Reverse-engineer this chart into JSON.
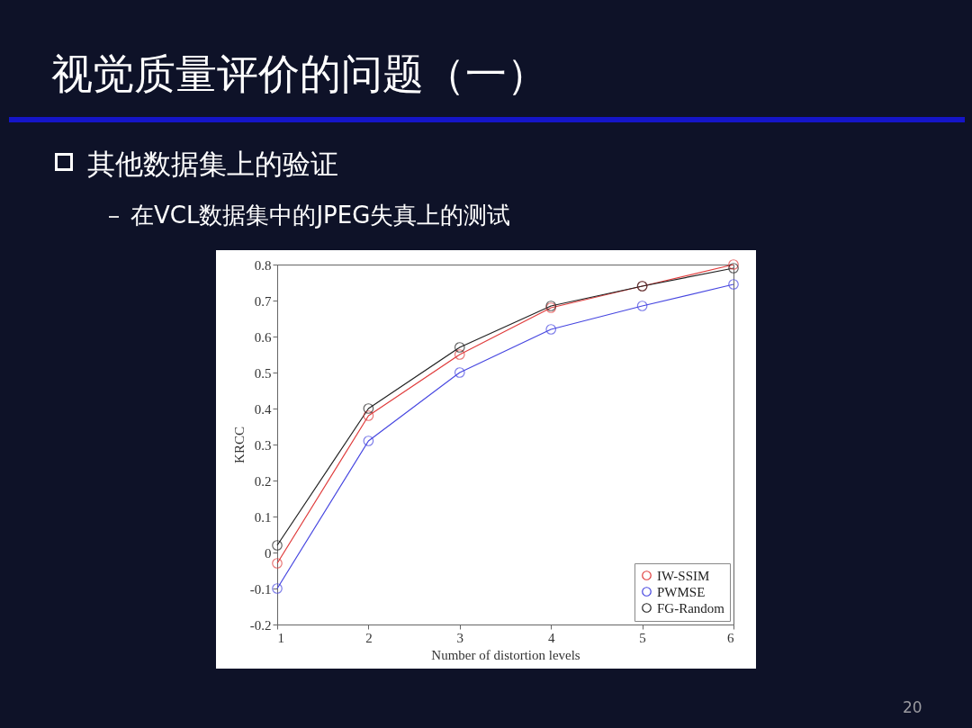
{
  "chart_data": {
    "type": "line",
    "title": "视觉质量评价的问题（一）",
    "subtitle": "其他数据集上的验证",
    "annotations": [
      "在VCL数据集中的JPEG失真上的测试",
      "20"
    ],
    "xlabel": "Number  of distortion levels",
    "ylabel": "KRCC",
    "x": [
      1,
      2,
      3,
      4,
      5,
      6
    ],
    "series": [
      {
        "name": "IW-SSIM",
        "color": "#e03c3c",
        "values": [
          -0.03,
          0.38,
          0.55,
          0.68,
          0.74,
          0.8
        ]
      },
      {
        "name": "PWMSE",
        "color": "#4646e0",
        "values": [
          -0.1,
          0.31,
          0.5,
          0.62,
          0.685,
          0.745
        ]
      },
      {
        "name": "FG-Random",
        "color": "#222222",
        "values": [
          0.02,
          0.4,
          0.57,
          0.685,
          0.74,
          0.79
        ]
      }
    ],
    "xlim": [
      1,
      6
    ],
    "xticks": [
      1,
      2,
      3,
      4,
      5,
      6
    ],
    "ylim": [
      -0.2,
      0.8
    ],
    "yticks": [
      -0.2,
      -0.1,
      0,
      0.1,
      0.2,
      0.3,
      0.4,
      0.5,
      0.6,
      0.7,
      0.8
    ],
    "marker": "circle",
    "line_style": "solid",
    "legend": "bottom right",
    "grid": false
  }
}
